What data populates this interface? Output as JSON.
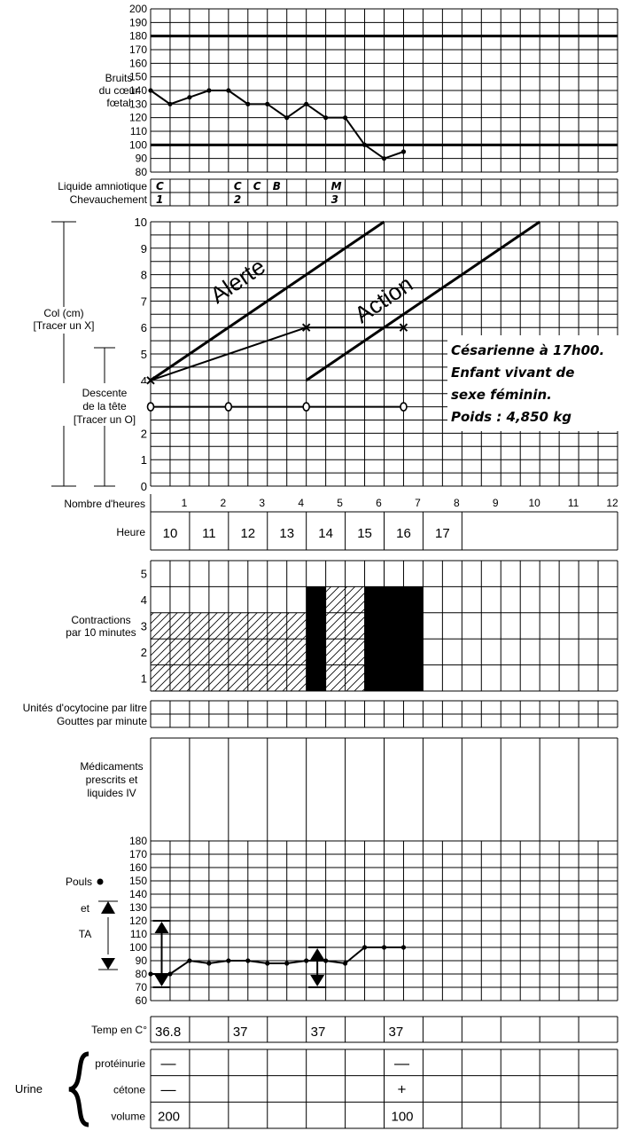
{
  "fhr": {
    "label": [
      "Bruits",
      "du cœur",
      "fœtal"
    ],
    "ticks": [
      200,
      190,
      180,
      170,
      160,
      150,
      140,
      130,
      120,
      110,
      100,
      90,
      80
    ],
    "limits": [
      180,
      100
    ]
  },
  "amniotic": {
    "label_liquid": "Liquide amniotique",
    "label_moulding": "Chevauchement",
    "liquid": [
      {
        "col": 0,
        "text": "C"
      },
      {
        "col": 4,
        "text": "C"
      },
      {
        "col": 5,
        "text": "C"
      },
      {
        "col": 6,
        "text": "B"
      },
      {
        "col": 9,
        "text": "M"
      }
    ],
    "moulding": [
      {
        "col": 0,
        "text": "1"
      },
      {
        "col": 4,
        "text": "2"
      },
      {
        "col": 9,
        "text": "3"
      }
    ]
  },
  "partograph": {
    "cervix_label": [
      "Col (cm)",
      "[Tracer un X]"
    ],
    "descent_label": [
      "Descente",
      "de la tête",
      "[Tracer un O]"
    ],
    "ticks": [
      10,
      9,
      8,
      7,
      6,
      5,
      4,
      3,
      2,
      1,
      0
    ],
    "alert_text": "Alerte",
    "action_text": "Action",
    "note": [
      "Césarienne à 17h00.",
      "Enfant vivant de",
      "sexe féminin.",
      "Poids : 4,850 kg"
    ]
  },
  "hours": {
    "label_hours": "Nombre d'heures",
    "numbers": [
      "1",
      "2",
      "3",
      "4",
      "5",
      "6",
      "7",
      "8",
      "9",
      "10",
      "11",
      "12"
    ],
    "label_time": "Heure",
    "times": [
      "10",
      "11",
      "12",
      "13",
      "14",
      "15",
      "16",
      "17"
    ]
  },
  "contractions": {
    "label": [
      "Contractions",
      "par 10 minutes"
    ],
    "ticks": [
      "5",
      "4",
      "3",
      "2",
      "1"
    ]
  },
  "oxytocin": {
    "label1": "Unités d'ocytocine par litre",
    "label2": "Gouttes par minute"
  },
  "drugs": {
    "label": [
      "Médicaments",
      "prescrits et",
      "liquides IV"
    ]
  },
  "vitals": {
    "pulse_label": "Pouls",
    "et_label": "et",
    "ta_label": "TA",
    "ticks": [
      180,
      170,
      160,
      150,
      140,
      130,
      120,
      110,
      100,
      90,
      80,
      70,
      60
    ]
  },
  "temperature": {
    "label": "Temp en C°",
    "values": [
      {
        "col": 0,
        "text": "36.8"
      },
      {
        "col": 2,
        "text": "37"
      },
      {
        "col": 4,
        "text": "37"
      },
      {
        "col": 6,
        "text": "37"
      }
    ]
  },
  "urine": {
    "label": "Urine",
    "rows": [
      "protéinurie",
      "cétone",
      "volume"
    ],
    "protein": [
      {
        "col": 0,
        "text": "—"
      },
      {
        "col": 6,
        "text": "—"
      }
    ],
    "ketone": [
      {
        "col": 0,
        "text": "—"
      },
      {
        "col": 6,
        "text": "+"
      }
    ],
    "volume": [
      {
        "col": 0,
        "text": "200"
      },
      {
        "col": 6,
        "text": "100"
      }
    ]
  },
  "chart_data": {
    "type": "line",
    "fetal_heart_rate": {
      "x_half_hours": [
        0,
        1,
        2,
        3,
        4,
        5,
        6,
        7,
        8,
        9,
        10,
        11,
        12,
        13
      ],
      "values": [
        140,
        130,
        135,
        140,
        140,
        130,
        130,
        120,
        130,
        120,
        120,
        100,
        90,
        95
      ],
      "ylim": [
        80,
        200
      ]
    },
    "cervical_dilatation": {
      "x_hours": [
        0,
        4.0,
        6.5
      ],
      "values": [
        4,
        6,
        6
      ],
      "ylim": [
        0,
        10
      ]
    },
    "head_descent": {
      "x_hours": [
        0,
        2.0,
        4.0,
        6.5
      ],
      "values": [
        3,
        3,
        3,
        3
      ]
    },
    "alert_line": {
      "x_hours": [
        0,
        6
      ],
      "values": [
        4,
        10
      ]
    },
    "action_line": {
      "x_hours": [
        4,
        10
      ],
      "values": [
        4,
        10
      ]
    },
    "contractions": [
      {
        "x_start": 0,
        "x_end": 4,
        "count": 3,
        "style": "hatched"
      },
      {
        "x_start": 4,
        "x_end": 4.5,
        "count": 4,
        "style": "solid"
      },
      {
        "x_start": 4.5,
        "x_end": 5.5,
        "count": 4,
        "style": "hatched"
      },
      {
        "x_start": 5.5,
        "x_end": 7,
        "count": 4,
        "style": "solid"
      }
    ],
    "pulse": {
      "x_half_hours": [
        0,
        1,
        2,
        3,
        4,
        5,
        6,
        7,
        8,
        9,
        10,
        11,
        12,
        13
      ],
      "values": [
        80,
        80,
        90,
        88,
        90,
        90,
        88,
        88,
        90,
        90,
        88,
        100,
        100,
        100
      ],
      "ylim": [
        60,
        180
      ]
    },
    "blood_pressure": [
      {
        "x_half_hours": 0.25,
        "systolic": 120,
        "diastolic": 70
      },
      {
        "x_half_hours": 8.25,
        "systolic": 100,
        "diastolic": 70
      }
    ]
  }
}
